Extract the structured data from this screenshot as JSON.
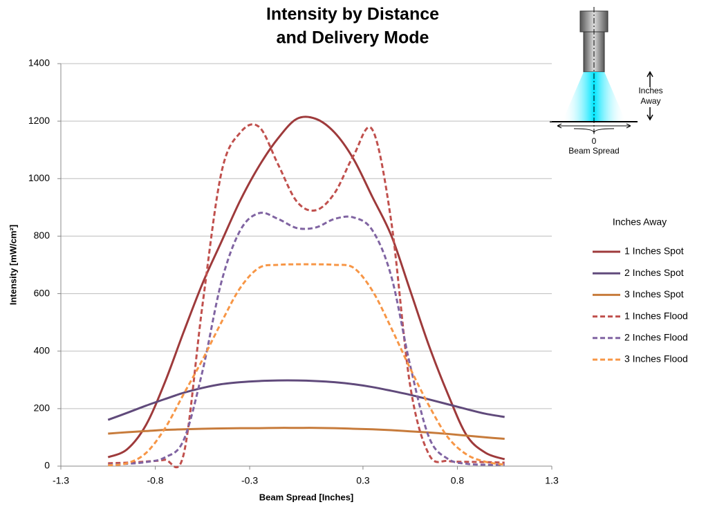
{
  "chart_data": {
    "type": "line",
    "title": [
      "Intensity by Distance",
      "and Delivery Mode"
    ],
    "x_label": "Beam Spread [Inches]",
    "y_label": "Intensity [mW/cm²]",
    "legend_title": "Inches Away",
    "legend": "right",
    "grid": true,
    "smooth": true,
    "xlim": [
      -1.3,
      1.3
    ],
    "xticks": [
      -1.3,
      -0.8,
      -0.3,
      0.3,
      0.8,
      1.3
    ],
    "ylim": [
      0,
      1400
    ],
    "yticks": [
      0,
      200,
      400,
      600,
      800,
      1000,
      1200,
      1400
    ],
    "x": [
      -1.05,
      -0.95,
      -0.85,
      -0.75,
      -0.65,
      -0.55,
      -0.45,
      -0.35,
      -0.25,
      -0.15,
      -0.05,
      0.05,
      0.15,
      0.25,
      0.35,
      0.45,
      0.55,
      0.65,
      0.75,
      0.85,
      0.95,
      1.05
    ],
    "series": [
      {
        "name": "1 Inches Spot",
        "color": "#9e3a3b",
        "dash": false,
        "values": [
          31,
          58,
          142,
          290,
          466,
          635,
          780,
          924,
          1044,
          1140,
          1208,
          1208,
          1160,
          1068,
          936,
          802,
          611,
          418,
          250,
          106,
          46,
          24
        ]
      },
      {
        "name": "2 Inches Spot",
        "color": "#604a7b",
        "dash": false,
        "values": [
          161,
          185,
          210,
          233,
          255,
          272,
          285,
          292,
          296,
          298,
          298,
          296,
          292,
          285,
          275,
          262,
          248,
          232,
          215,
          198,
          182,
          171
        ]
      },
      {
        "name": "3 Inches Spot",
        "color": "#c77b3b",
        "dash": false,
        "values": [
          113,
          118,
          122,
          126,
          128,
          130,
          131,
          132,
          132,
          133,
          133,
          133,
          132,
          130,
          128,
          125,
          121,
          117,
          112,
          106,
          100,
          95
        ]
      },
      {
        "name": "1 Inches Flood",
        "color": "#c0504d",
        "dash": true,
        "values": [
          10,
          12,
          16,
          22,
          40,
          560,
          1020,
          1160,
          1180,
          1050,
          920,
          890,
          950,
          1080,
          1170,
          850,
          280,
          40,
          18,
          15,
          14,
          12
        ]
      },
      {
        "name": "2 Inches Flood",
        "color": "#8064a2",
        "dash": true,
        "values": [
          5,
          8,
          14,
          30,
          90,
          330,
          640,
          820,
          880,
          860,
          828,
          830,
          860,
          865,
          820,
          660,
          350,
          100,
          25,
          8,
          5,
          5
        ]
      },
      {
        "name": "3 Inches Flood",
        "color": "#f79646",
        "dash": true,
        "values": [
          3,
          10,
          45,
          130,
          250,
          370,
          500,
          620,
          690,
          700,
          702,
          702,
          700,
          690,
          610,
          480,
          340,
          210,
          100,
          40,
          15,
          5
        ]
      }
    ]
  },
  "diagram": {
    "height_label": [
      "Inches",
      "Away"
    ],
    "zero_label": "0",
    "spread_label": "Beam Spread"
  }
}
